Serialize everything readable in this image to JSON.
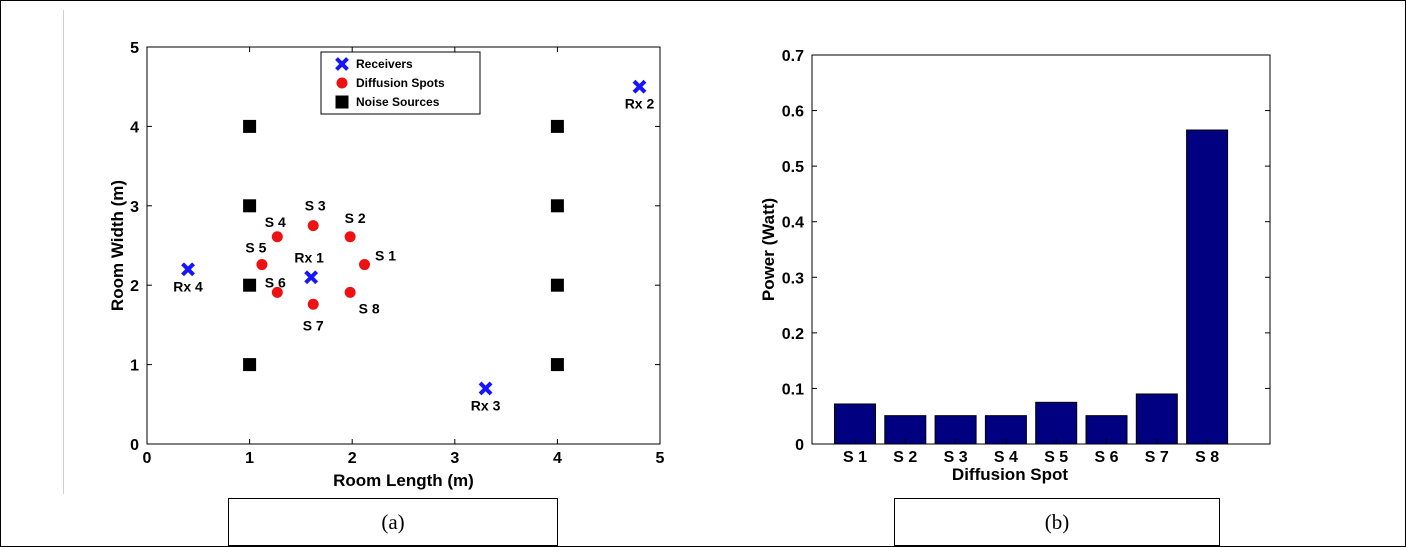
{
  "captions": {
    "a": "(a)",
    "b": "(b)"
  },
  "chart_data": [
    {
      "type": "scatter",
      "xlabel": "Room Length (m)",
      "ylabel": "Room Width (m)",
      "xlim": [
        0,
        5
      ],
      "ylim": [
        0,
        5
      ],
      "xticks": [
        "0",
        "1",
        "2",
        "3",
        "4",
        "5"
      ],
      "yticks": [
        "0",
        "1",
        "2",
        "3",
        "4",
        "5"
      ],
      "grid": false,
      "legend_position": "top-center",
      "legend": [
        "Receivers",
        "Diffusion Spots",
        "Noise Sources"
      ],
      "colors": {
        "receivers": "#1515ff",
        "diffusion": "#ee1111",
        "noise": "#000000"
      },
      "receivers": [
        {
          "label": "Rx 1",
          "x": 1.6,
          "y": 2.1
        },
        {
          "label": "Rx 2",
          "x": 4.8,
          "y": 4.5
        },
        {
          "label": "Rx 3",
          "x": 3.3,
          "y": 0.7
        },
        {
          "label": "Rx 4",
          "x": 0.4,
          "y": 2.2
        }
      ],
      "diffusion_spots": [
        {
          "label": "S 1",
          "x": 2.12,
          "y": 2.26
        },
        {
          "label": "S 2",
          "x": 1.98,
          "y": 2.61
        },
        {
          "label": "S 3",
          "x": 1.62,
          "y": 2.75
        },
        {
          "label": "S 4",
          "x": 1.27,
          "y": 2.61
        },
        {
          "label": "S 5",
          "x": 1.12,
          "y": 2.26
        },
        {
          "label": "S 6",
          "x": 1.27,
          "y": 1.91
        },
        {
          "label": "S 7",
          "x": 1.62,
          "y": 1.76
        },
        {
          "label": "S 8",
          "x": 1.98,
          "y": 1.91
        }
      ],
      "noise_sources": [
        {
          "x": 1,
          "y": 1
        },
        {
          "x": 1,
          "y": 2
        },
        {
          "x": 1,
          "y": 3
        },
        {
          "x": 1,
          "y": 4
        },
        {
          "x": 4,
          "y": 1
        },
        {
          "x": 4,
          "y": 2
        },
        {
          "x": 4,
          "y": 3
        },
        {
          "x": 4,
          "y": 4
        }
      ]
    },
    {
      "type": "bar",
      "xlabel": "Diffusion Spot",
      "ylabel": "Power (Watt)",
      "ylim": [
        0,
        0.7
      ],
      "yticks": [
        "0",
        "0.1",
        "0.2",
        "0.3",
        "0.4",
        "0.5",
        "0.6",
        "0.7"
      ],
      "grid": false,
      "bar_color": "#000080",
      "categories": [
        "S 1",
        "S 2",
        "S 3",
        "S 4",
        "S 5",
        "S 6",
        "S 7",
        "S 8"
      ],
      "values": [
        0.072,
        0.051,
        0.051,
        0.051,
        0.075,
        0.051,
        0.09,
        0.565
      ]
    }
  ]
}
